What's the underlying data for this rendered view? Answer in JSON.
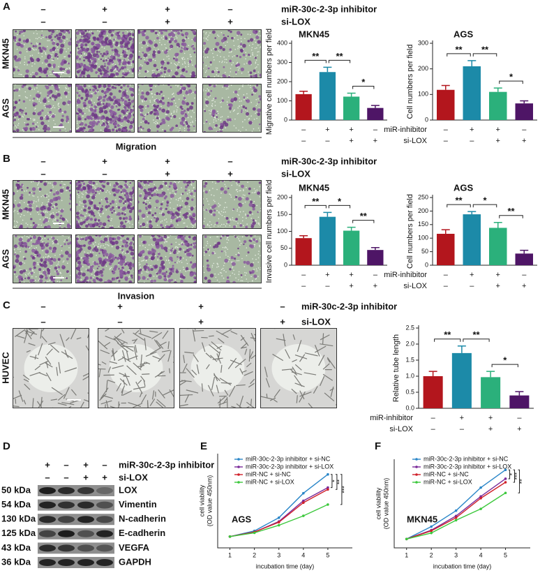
{
  "panel_labels": [
    "A",
    "B",
    "C",
    "D",
    "E",
    "F"
  ],
  "treatments": [
    "miR-30c-2-3p inhibitor",
    "si-LOX"
  ],
  "signs": [
    [
      "–",
      "+",
      "+",
      "–"
    ],
    [
      "–",
      "–",
      "+",
      "+"
    ]
  ],
  "blot_signs": [
    [
      "+",
      "–",
      "+",
      "–"
    ],
    [
      "–",
      "–",
      "+",
      "+"
    ]
  ],
  "short_treatments": [
    "miR-inhibitor",
    "si-LOX"
  ],
  "image_row_labels": {
    "migration": [
      "MKN45",
      "AGS"
    ],
    "invasion": [
      "MKN45",
      "AGS"
    ],
    "tube": [
      "HUVEC"
    ]
  },
  "assay_labels": [
    "Migration",
    "Invasion"
  ],
  "blot": {
    "sizes": [
      "50 kDa",
      "54 kDa",
      "130 kDa",
      "125 kDa",
      "43 kDa",
      "36 kDa"
    ],
    "proteins": [
      "LOX",
      "Vimentin",
      "N-cadherin",
      "E-cadherin",
      "VEGFA",
      "GAPDH"
    ]
  },
  "chart_data": [
    {
      "type": "bar",
      "title": "MKN45",
      "ylabel": "Migrative cell numbers per field",
      "values": [
        135,
        250,
        122,
        63
      ],
      "errors": [
        15,
        25,
        18,
        13
      ],
      "colors": [
        "#b3161d",
        "#1c8aa8",
        "#2bb07b",
        "#4e1566"
      ],
      "ylim": [
        0,
        400
      ],
      "yticks": [
        0,
        100,
        200,
        300,
        400
      ],
      "significance": [
        "**",
        "**",
        "*"
      ]
    },
    {
      "type": "bar",
      "title": "AGS",
      "ylabel": "Cell numbers per field",
      "values": [
        118,
        210,
        110,
        65
      ],
      "errors": [
        17,
        22,
        15,
        10
      ],
      "colors": [
        "#b3161d",
        "#1c8aa8",
        "#2bb07b",
        "#4e1566"
      ],
      "ylim": [
        0,
        300
      ],
      "yticks": [
        0,
        100,
        200,
        300
      ],
      "significance": [
        "**",
        "**",
        "*"
      ]
    },
    {
      "type": "bar",
      "title": "MKN45",
      "ylabel": "Invasive cell numbers per field",
      "values": [
        80,
        143,
        102,
        45
      ],
      "errors": [
        7,
        13,
        10,
        7
      ],
      "colors": [
        "#b3161d",
        "#1c8aa8",
        "#2bb07b",
        "#4e1566"
      ],
      "ylim": [
        0,
        200
      ],
      "yticks": [
        0,
        50,
        100,
        150,
        200
      ],
      "significance": [
        "**",
        "*",
        "**"
      ]
    },
    {
      "type": "bar",
      "title": "AGS",
      "ylabel": "Cell numbers per field",
      "values": [
        116,
        188,
        138,
        43
      ],
      "errors": [
        15,
        10,
        20,
        12
      ],
      "colors": [
        "#b3161d",
        "#1c8aa8",
        "#2bb07b",
        "#4e1566"
      ],
      "ylim": [
        0,
        250
      ],
      "yticks": [
        0,
        50,
        100,
        150,
        200,
        250
      ],
      "significance": [
        "**",
        "*",
        "**"
      ]
    },
    {
      "type": "bar",
      "ylabel": "Relative tube length",
      "values": [
        1.0,
        1.72,
        0.97,
        0.4
      ],
      "errors": [
        0.15,
        0.22,
        0.18,
        0.12
      ],
      "colors": [
        "#b3161d",
        "#1c8aa8",
        "#2bb07b",
        "#4e1566"
      ],
      "ylim": [
        0,
        2.5
      ],
      "yticks": [
        {
          "value": 0,
          "label": "0.0"
        },
        0.5,
        {
          "value": 1,
          "label": "1.0"
        },
        1.5,
        {
          "value": 2,
          "label": "2.0"
        },
        2.5
      ],
      "significance": [
        "**",
        "**",
        "*"
      ]
    },
    {
      "type": "line",
      "annotation": "AGS",
      "ylabel": [
        "cell viability",
        "(OD value 450nm)"
      ],
      "xlabel": "incubation time (day)",
      "x": [
        1,
        2,
        3,
        4,
        5
      ],
      "xlim": [
        0.5,
        6
      ],
      "xticks": [
        1,
        2,
        3,
        4,
        5
      ],
      "ylim": [
        0,
        2.5
      ],
      "series": [
        {
          "name": "miR-30c-2-3p inhibitor + si-NC",
          "color": "#2a86c8",
          "values": [
            0.3,
            0.45,
            0.8,
            1.45,
            1.95
          ]
        },
        {
          "name": "miR-30c-2-3p inhibitor + si-LOX",
          "color": "#7a2a9a",
          "values": [
            0.3,
            0.42,
            0.7,
            1.25,
            1.6
          ]
        },
        {
          "name": "miR-NC + si-NC",
          "color": "#d0202a",
          "values": [
            0.3,
            0.42,
            0.68,
            1.2,
            1.55
          ]
        },
        {
          "name": "miR-NC + si-LOX",
          "color": "#3cc83c",
          "values": [
            0.3,
            0.4,
            0.6,
            0.85,
            1.15
          ]
        }
      ],
      "significance": [
        "*",
        "**",
        "***"
      ]
    },
    {
      "type": "line",
      "annotation": "MKN45",
      "ylabel": [
        "cell viability",
        "(OD value 450nm)"
      ],
      "xlabel": "incubation time (day)",
      "x": [
        1,
        2,
        3,
        4,
        5
      ],
      "xlim": [
        0.5,
        6
      ],
      "xticks": [
        1,
        2,
        3,
        4,
        5
      ],
      "ylim": [
        0,
        2.5
      ],
      "series": [
        {
          "name": "miR-30c-2-3p inhibitor + si-NC",
          "color": "#2a86c8",
          "values": [
            0.25,
            0.6,
            1.05,
            1.7,
            2.2
          ]
        },
        {
          "name": "miR-30c-2-3p inhibitor + si-LOX",
          "color": "#7a2a9a",
          "values": [
            0.25,
            0.5,
            0.9,
            1.45,
            1.95
          ]
        },
        {
          "name": "miR-NC + si-NC",
          "color": "#d0202a",
          "values": [
            0.25,
            0.48,
            0.85,
            1.4,
            1.85
          ]
        },
        {
          "name": "miR-NC + si-LOX",
          "color": "#3cc83c",
          "values": [
            0.25,
            0.42,
            0.78,
            1.1,
            1.55
          ]
        }
      ],
      "significance": [
        "*",
        "***",
        "**"
      ]
    }
  ]
}
